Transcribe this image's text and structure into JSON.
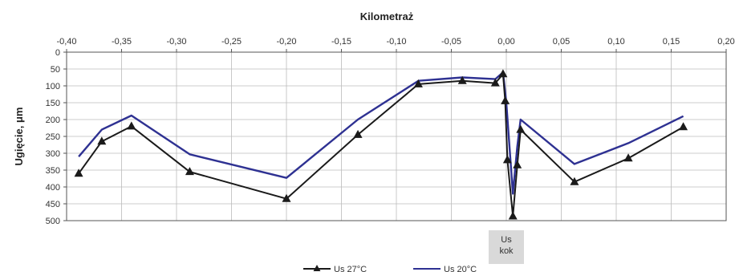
{
  "chart_data": {
    "type": "line",
    "xlabel": "Kilometraż",
    "ylabel": "Ugięcie, μm",
    "xlim": [
      -0.4,
      0.2
    ],
    "ylim": [
      0,
      500
    ],
    "y_inverted": true,
    "x_axis_position": "top",
    "x_ticks": [
      "-0,40",
      "-0,35",
      "-0,30",
      "-0,25",
      "-0,20",
      "-0,15",
      "-0,10",
      "-0,05",
      "0,00",
      "0,05",
      "0,10",
      "0,15",
      "0,20"
    ],
    "y_ticks": [
      "0",
      "50",
      "100",
      "150",
      "200",
      "250",
      "300",
      "350",
      "400",
      "450",
      "500"
    ],
    "grid": true,
    "legend_position": "bottom",
    "annotation": {
      "lines": [
        "Us",
        "kok"
      ],
      "x": 0.0
    },
    "series": [
      {
        "name": "Us 27°C",
        "color": "#1a1a1a",
        "marker": "triangle",
        "points": [
          [
            -0.389,
            360
          ],
          [
            -0.368,
            265
          ],
          [
            -0.341,
            220
          ],
          [
            -0.288,
            355
          ],
          [
            -0.2,
            435
          ],
          [
            -0.135,
            245
          ],
          [
            -0.08,
            95
          ],
          [
            -0.04,
            85
          ],
          [
            -0.01,
            92
          ],
          [
            -0.003,
            65
          ],
          [
            -0.001,
            145
          ],
          [
            0.001,
            320
          ],
          [
            0.006,
            487
          ],
          [
            0.01,
            335
          ],
          [
            0.013,
            230
          ],
          [
            0.062,
            385
          ],
          [
            0.111,
            315
          ],
          [
            0.161,
            222
          ]
        ]
      },
      {
        "name": "Us 20°C",
        "color": "#2e3192",
        "marker": "none",
        "points": [
          [
            -0.389,
            310
          ],
          [
            -0.368,
            230
          ],
          [
            -0.341,
            188
          ],
          [
            -0.288,
            303
          ],
          [
            -0.2,
            373
          ],
          [
            -0.135,
            200
          ],
          [
            -0.08,
            85
          ],
          [
            -0.04,
            75
          ],
          [
            -0.01,
            80
          ],
          [
            -0.003,
            60
          ],
          [
            0.0,
            150
          ],
          [
            0.006,
            420
          ],
          [
            0.01,
            280
          ],
          [
            0.013,
            200
          ],
          [
            0.062,
            332
          ],
          [
            0.111,
            270
          ],
          [
            0.161,
            190
          ]
        ]
      }
    ]
  }
}
